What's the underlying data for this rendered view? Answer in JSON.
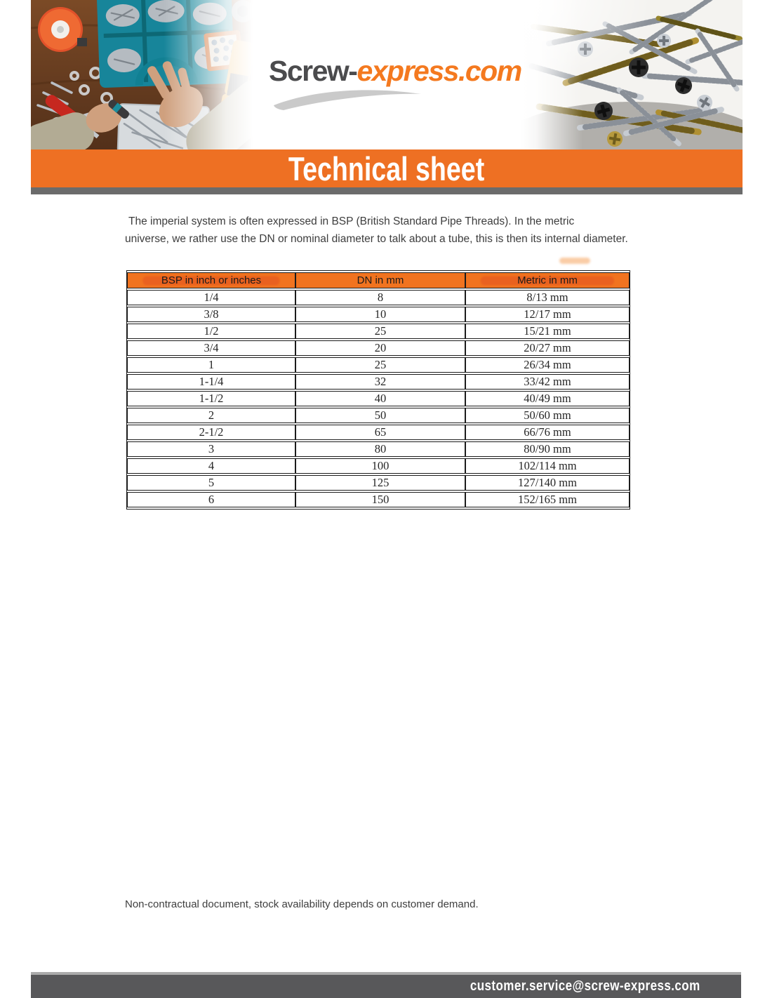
{
  "logo": {
    "part1": "Screw-",
    "part2": "express.com"
  },
  "banner": {
    "title": "Technical sheet"
  },
  "intro": {
    "line1": "The imperial system is often expressed in BSP (British Standard Pipe Threads). In the metric",
    "line2": "universe, we rather use the DN or nominal diameter to talk about a tube, this is then its internal diameter."
  },
  "table": {
    "headers": [
      "BSP in inch or inches",
      "DN in mm",
      "Metric in mm"
    ],
    "rows": [
      [
        "1/4",
        "8",
        "8/13 mm"
      ],
      [
        "3/8",
        "10",
        "12/17 mm"
      ],
      [
        "1/2",
        "25",
        "15/21 mm"
      ],
      [
        "3/4",
        "20",
        "20/27 mm"
      ],
      [
        "1",
        "25",
        "26/34 mm"
      ],
      [
        "1-1/4",
        "32",
        "33/42 mm"
      ],
      [
        "1-1/2",
        "40",
        "40/49 mm"
      ],
      [
        "2",
        "50",
        "50/60 mm"
      ],
      [
        "2-1/2",
        "65",
        "66/76 mm"
      ],
      [
        "3",
        "80",
        "80/90 mm"
      ],
      [
        "4",
        "100",
        "102/114 mm"
      ],
      [
        "5",
        "125",
        "127/140 mm"
      ],
      [
        "6",
        "150",
        "152/165 mm"
      ]
    ]
  },
  "footer": {
    "note": "Non-contractual document, stock availability depends on customer demand.",
    "email": "customer.service@screw-express.com"
  },
  "colors": {
    "accent_orange": "#EE7023",
    "table_header_orange": "#F1731F",
    "header_highlight": "#E4531F",
    "banner_underline_gray": "#6B6B6B",
    "footer_bar_gray": "#58585A",
    "logo_gray": "#4B4B4D",
    "logo_orange": "#F4791F"
  }
}
